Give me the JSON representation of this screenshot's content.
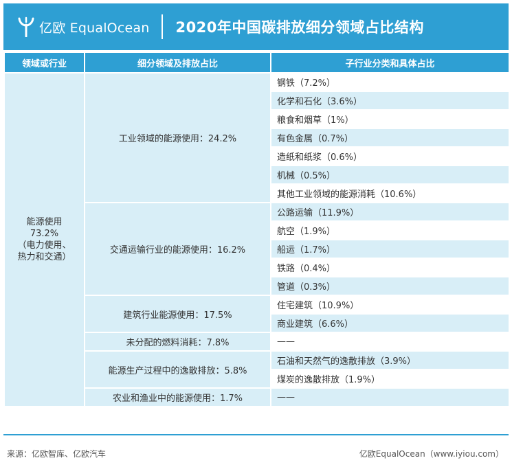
{
  "header": {
    "logo_icon": "equalocean-tree-logo-icon",
    "brand": "亿欧 EqualOcean",
    "title": "2020年中国碳排放细分领域占比结构"
  },
  "table": {
    "columns": [
      "领域或行业",
      "细分领域及排放占比",
      "子行业分类和具体占比"
    ],
    "sector": {
      "name": "能源使用",
      "share": "73.2%",
      "note": "（电力使用、",
      "note2": "热力和交通）"
    },
    "groups": [
      {
        "label": "工业领域的能源使用：24.2%",
        "items": [
          "钢铁（7.2%）",
          "化学和石化（3.6%）",
          "粮食和烟草（1%）",
          "有色金属（0.7%）",
          "造纸和纸浆（0.6%）",
          "机械（0.5%）",
          "其他工业领域的能源消耗（10.6%）"
        ]
      },
      {
        "label": "交通运输行业的能源使用：16.2%",
        "items": [
          "公路运输（11.9%）",
          "航空（1.9%）",
          "船运（1.7%）",
          "铁路（0.4%）",
          "管道（0.3%）"
        ]
      },
      {
        "label": "建筑行业能源使用：17.5%",
        "items": [
          "住宅建筑（10.9%）",
          "商业建筑（6.6%）"
        ]
      },
      {
        "label": "未分配的燃料消耗：7.8%",
        "items": [
          "——"
        ]
      },
      {
        "label": "能源生产过程中的逸散排放：5.8%",
        "items": [
          "石油和天然气的逸散排放（3.9%）",
          "煤炭的逸散排放（1.9%）"
        ]
      },
      {
        "label": "农业和渔业中的能源使用：1.7%",
        "items": [
          "——"
        ]
      }
    ]
  },
  "footer": {
    "source": "来源：亿欧智库、亿欧汽车",
    "credit": "亿欧EqualOcean（www.iyiou.com）"
  }
}
